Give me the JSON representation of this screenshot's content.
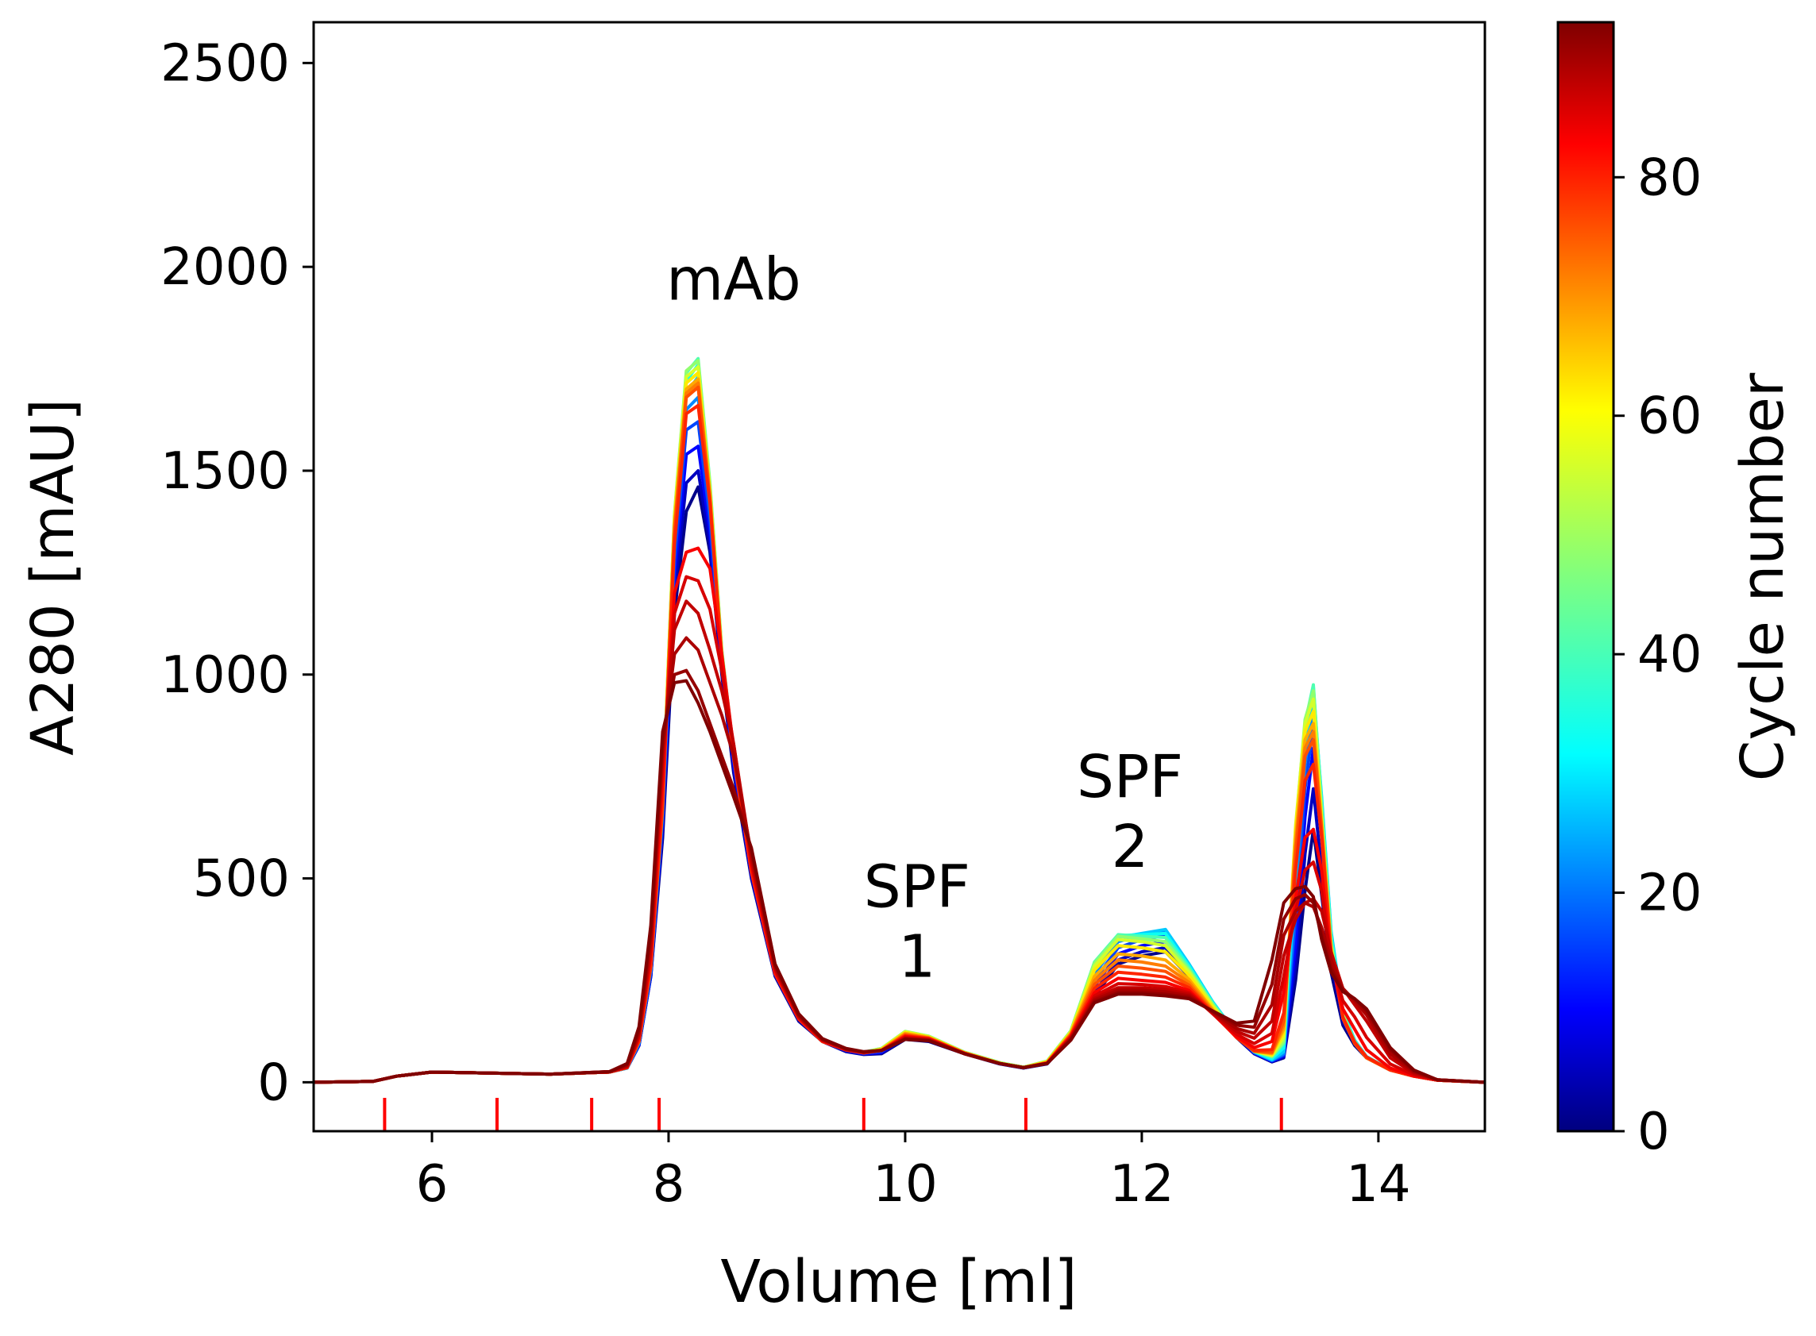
{
  "chart_data": {
    "type": "line",
    "xlabel": "Volume [ml]",
    "ylabel": "A280 [mAU]",
    "xlim": [
      5.0,
      14.9
    ],
    "ylim": [
      -120,
      2600
    ],
    "xticks": [
      6,
      8,
      10,
      12,
      14
    ],
    "yticks": [
      0,
      500,
      1000,
      1500,
      2000,
      2500
    ],
    "grid": false,
    "colorbar": {
      "label": "Cycle number",
      "colormap": "jet",
      "range": [
        0,
        93
      ],
      "ticks": [
        0,
        20,
        40,
        60,
        80
      ]
    },
    "annotations": [
      {
        "lines": [
          "mAb"
        ],
        "x": 8.55,
        "y": 1920
      },
      {
        "lines": [
          "SPF",
          "1"
        ],
        "x": 10.1,
        "y": 430
      },
      {
        "lines": [
          "SPF",
          "2"
        ],
        "x": 11.9,
        "y": 700
      }
    ],
    "fraction_markers": {
      "color": "#ff0000",
      "x": [
        5.6,
        6.55,
        7.35,
        7.92,
        9.65,
        11.02,
        13.18
      ]
    },
    "cycles": [
      1,
      6,
      12,
      18,
      24,
      30,
      36,
      42,
      48,
      54,
      60,
      66,
      70,
      74,
      78,
      82,
      85,
      87,
      89,
      91,
      93
    ],
    "profile_x": [
      5.0,
      5.5,
      5.7,
      6.0,
      7.0,
      7.5,
      7.65,
      7.75,
      7.85,
      7.95,
      8.05,
      8.15,
      8.25,
      8.35,
      8.45,
      8.55,
      8.7,
      8.9,
      9.1,
      9.3,
      9.5,
      9.65,
      9.8,
      10.0,
      10.2,
      10.5,
      10.8,
      11.0,
      11.2,
      11.4,
      11.6,
      11.8,
      12.0,
      12.2,
      12.4,
      12.6,
      12.8,
      12.95,
      13.1,
      13.2,
      13.3,
      13.38,
      13.45,
      13.52,
      13.6,
      13.7,
      13.8,
      13.9,
      14.1,
      14.3,
      14.5,
      14.9
    ],
    "series": [
      {
        "values": [
          0,
          2,
          15,
          25,
          20,
          25,
          35,
          90,
          260,
          600,
          1150,
          1400,
          1460,
          1300,
          1000,
          760,
          500,
          260,
          150,
          100,
          75,
          68,
          70,
          105,
          100,
          70,
          45,
          35,
          45,
          110,
          210,
          290,
          310,
          320,
          260,
          180,
          110,
          70,
          50,
          60,
          250,
          470,
          620,
          460,
          270,
          140,
          90,
          60,
          30,
          15,
          5,
          0
        ]
      },
      {
        "values": [
          0,
          2,
          15,
          25,
          20,
          25,
          35,
          90,
          260,
          620,
          1200,
          1470,
          1500,
          1320,
          1010,
          770,
          505,
          262,
          152,
          100,
          76,
          69,
          72,
          108,
          103,
          71,
          46,
          35,
          46,
          112,
          220,
          300,
          320,
          330,
          268,
          185,
          112,
          71,
          51,
          62,
          290,
          560,
          720,
          520,
          300,
          150,
          95,
          60,
          30,
          15,
          5,
          0
        ]
      },
      {
        "values": [
          0,
          2,
          15,
          25,
          20,
          25,
          35,
          92,
          265,
          640,
          1240,
          1540,
          1560,
          1350,
          1020,
          780,
          510,
          265,
          155,
          100,
          78,
          70,
          74,
          112,
          106,
          72,
          46,
          36,
          47,
          115,
          235,
          315,
          335,
          345,
          276,
          190,
          114,
          72,
          52,
          65,
          340,
          650,
          820,
          600,
          330,
          160,
          98,
          61,
          30,
          15,
          5,
          0
        ]
      },
      {
        "values": [
          0,
          2,
          15,
          25,
          20,
          25,
          35,
          94,
          270,
          650,
          1280,
          1600,
          1620,
          1380,
          1030,
          790,
          515,
          267,
          157,
          101,
          79,
          71,
          76,
          115,
          108,
          72,
          47,
          36,
          48,
          118,
          250,
          330,
          350,
          360,
          282,
          193,
          116,
          73,
          53,
          67,
          400,
          720,
          880,
          650,
          350,
          168,
          100,
          62,
          31,
          16,
          5,
          0
        ]
      },
      {
        "values": [
          0,
          2,
          15,
          25,
          20,
          25,
          35,
          96,
          275,
          660,
          1320,
          1650,
          1680,
          1410,
          1040,
          800,
          520,
          270,
          158,
          101,
          80,
          72,
          78,
          118,
          110,
          73,
          47,
          36,
          49,
          120,
          265,
          345,
          360,
          370,
          288,
          196,
          118,
          74,
          54,
          70,
          450,
          780,
          920,
          690,
          365,
          172,
          102,
          62,
          31,
          16,
          5,
          0
        ]
      },
      {
        "values": [
          0,
          2,
          15,
          25,
          20,
          25,
          35,
          98,
          280,
          670,
          1350,
          1690,
          1730,
          1440,
          1050,
          805,
          522,
          271,
          159,
          102,
          81,
          73,
          80,
          120,
          111,
          73,
          47,
          37,
          50,
          122,
          280,
          355,
          365,
          375,
          290,
          197,
          119,
          75,
          55,
          75,
          500,
          820,
          950,
          700,
          370,
          175,
          103,
          63,
          31,
          16,
          5,
          0
        ]
      },
      {
        "values": [
          0,
          2,
          15,
          25,
          20,
          25,
          36,
          100,
          285,
          680,
          1370,
          1720,
          1760,
          1460,
          1055,
          808,
          524,
          272,
          160,
          102,
          82,
          74,
          82,
          122,
          112,
          74,
          48,
          37,
          51,
          124,
          290,
          360,
          362,
          365,
          285,
          195,
          118,
          75,
          58,
          85,
          560,
          860,
          970,
          690,
          360,
          172,
          102,
          62,
          31,
          16,
          5,
          0
        ]
      },
      {
        "values": [
          0,
          2,
          15,
          25,
          20,
          25,
          36,
          102,
          290,
          690,
          1390,
          1740,
          1775,
          1470,
          1060,
          810,
          525,
          272,
          160,
          102,
          82,
          74,
          83,
          124,
          113,
          74,
          48,
          37,
          52,
          126,
          295,
          362,
          358,
          355,
          280,
          193,
          118,
          76,
          62,
          95,
          600,
          880,
          975,
          680,
          350,
          168,
          100,
          62,
          31,
          16,
          5,
          0
        ]
      },
      {
        "values": [
          0,
          2,
          15,
          25,
          20,
          25,
          36,
          104,
          292,
          695,
          1395,
          1745,
          1770,
          1465,
          1058,
          808,
          524,
          271,
          159,
          102,
          82,
          74,
          83,
          125,
          113,
          74,
          48,
          37,
          52,
          126,
          292,
          358,
          352,
          345,
          275,
          190,
          117,
          76,
          64,
          100,
          620,
          890,
          960,
          660,
          340,
          165,
          98,
          61,
          30,
          15,
          5,
          0
        ]
      },
      {
        "values": [
          0,
          2,
          15,
          25,
          20,
          25,
          36,
          104,
          290,
          690,
          1390,
          1730,
          1755,
          1455,
          1054,
          805,
          522,
          270,
          158,
          101,
          81,
          73,
          82,
          124,
          112,
          73,
          47,
          37,
          51,
          124,
          285,
          350,
          345,
          335,
          270,
          187,
          116,
          76,
          66,
          110,
          630,
          880,
          940,
          650,
          335,
          162,
          97,
          61,
          30,
          15,
          5,
          0
        ]
      },
      {
        "values": [
          0,
          2,
          15,
          25,
          20,
          25,
          36,
          102,
          288,
          685,
          1380,
          1715,
          1740,
          1448,
          1050,
          803,
          520,
          269,
          157,
          101,
          81,
          73,
          81,
          122,
          111,
          73,
          47,
          36,
          50,
          122,
          275,
          335,
          330,
          320,
          262,
          183,
          114,
          76,
          68,
          120,
          620,
          860,
          910,
          640,
          330,
          160,
          96,
          60,
          30,
          15,
          5,
          0
        ]
      },
      {
        "values": [
          0,
          2,
          15,
          25,
          20,
          25,
          36,
          100,
          285,
          680,
          1370,
          1700,
          1725,
          1440,
          1046,
          800,
          518,
          268,
          156,
          100,
          80,
          72,
          80,
          120,
          110,
          72,
          46,
          36,
          49,
          120,
          260,
          315,
          310,
          300,
          252,
          178,
          112,
          76,
          70,
          130,
          600,
          840,
          880,
          630,
          325,
          158,
          95,
          60,
          30,
          15,
          5,
          0
        ]
      },
      {
        "values": [
          0,
          2,
          15,
          25,
          20,
          25,
          36,
          100,
          282,
          675,
          1360,
          1690,
          1715,
          1435,
          1044,
          798,
          517,
          267,
          156,
          100,
          80,
          72,
          79,
          118,
          109,
          72,
          46,
          36,
          48,
          118,
          250,
          300,
          295,
          285,
          245,
          175,
          111,
          76,
          72,
          140,
          580,
          820,
          860,
          625,
          322,
          157,
          95,
          60,
          30,
          15,
          5,
          0
        ]
      },
      {
        "values": [
          0,
          2,
          15,
          25,
          20,
          25,
          36,
          100,
          282,
          675,
          1350,
          1680,
          1705,
          1430,
          1042,
          797,
          516,
          266,
          155,
          100,
          79,
          72,
          78,
          116,
          108,
          72,
          46,
          36,
          48,
          116,
          240,
          285,
          280,
          272,
          238,
          172,
          110,
          76,
          74,
          150,
          560,
          800,
          840,
          620,
          320,
          156,
          95,
          60,
          30,
          15,
          5,
          0
        ]
      },
      {
        "values": [
          0,
          2,
          15,
          25,
          20,
          25,
          36,
          102,
          288,
          690,
          1320,
          1640,
          1660,
          1420,
          1040,
          796,
          515,
          266,
          155,
          100,
          79,
          72,
          78,
          114,
          107,
          71,
          46,
          36,
          47,
          114,
          230,
          270,
          265,
          258,
          232,
          170,
          110,
          78,
          80,
          170,
          520,
          740,
          780,
          600,
          310,
          160,
          98,
          62,
          30,
          15,
          5,
          0
        ]
      },
      {
        "values": [
          0,
          2,
          15,
          25,
          20,
          25,
          38,
          110,
          310,
          740,
          1200,
          1300,
          1310,
          1260,
          1050,
          820,
          530,
          272,
          158,
          102,
          80,
          73,
          78,
          112,
          106,
          71,
          46,
          36,
          47,
          112,
          220,
          255,
          250,
          245,
          225,
          168,
          112,
          85,
          100,
          220,
          450,
          600,
          620,
          520,
          300,
          180,
          130,
          80,
          35,
          15,
          5,
          0
        ]
      },
      {
        "values": [
          0,
          2,
          15,
          25,
          20,
          25,
          38,
          112,
          320,
          780,
          1150,
          1240,
          1230,
          1160,
          1010,
          830,
          540,
          276,
          160,
          103,
          80,
          73,
          78,
          110,
          105,
          71,
          46,
          36,
          46,
          110,
          212,
          242,
          240,
          235,
          220,
          168,
          118,
          95,
          120,
          260,
          420,
          520,
          540,
          470,
          300,
          200,
          160,
          110,
          45,
          18,
          5,
          0
        ]
      },
      {
        "values": [
          0,
          2,
          15,
          25,
          20,
          25,
          40,
          118,
          340,
          800,
          1110,
          1180,
          1150,
          1060,
          960,
          830,
          550,
          280,
          162,
          104,
          81,
          73,
          78,
          108,
          104,
          70,
          46,
          36,
          46,
          108,
          206,
          232,
          232,
          228,
          216,
          170,
          125,
          108,
          150,
          310,
          400,
          440,
          450,
          420,
          320,
          230,
          190,
          150,
          60,
          22,
          6,
          0
        ]
      },
      {
        "values": [
          0,
          2,
          15,
          25,
          20,
          26,
          42,
          124,
          355,
          820,
          1050,
          1090,
          1060,
          980,
          900,
          800,
          560,
          284,
          164,
          105,
          82,
          74,
          78,
          107,
          103,
          70,
          46,
          36,
          46,
          106,
          202,
          226,
          226,
          222,
          212,
          172,
          132,
          120,
          190,
          360,
          420,
          440,
          430,
          380,
          300,
          230,
          200,
          165,
          70,
          25,
          6,
          0
        ]
      },
      {
        "values": [
          0,
          2,
          15,
          25,
          20,
          26,
          44,
          130,
          370,
          840,
          1000,
          1010,
          960,
          880,
          800,
          720,
          570,
          288,
          166,
          106,
          82,
          74,
          78,
          106,
          102,
          70,
          46,
          36,
          46,
          104,
          198,
          220,
          220,
          216,
          208,
          174,
          140,
          135,
          240,
          400,
          450,
          460,
          440,
          360,
          280,
          225,
          205,
          175,
          80,
          28,
          6,
          0
        ]
      },
      {
        "values": [
          0,
          2,
          15,
          25,
          20,
          26,
          46,
          136,
          385,
          860,
          980,
          985,
          930,
          860,
          780,
          700,
          575,
          290,
          168,
          107,
          83,
          75,
          78,
          105,
          102,
          70,
          46,
          36,
          46,
          103,
          195,
          216,
          216,
          212,
          205,
          175,
          145,
          150,
          300,
          440,
          475,
          480,
          455,
          350,
          270,
          222,
          205,
          180,
          85,
          30,
          6,
          0
        ]
      }
    ]
  }
}
